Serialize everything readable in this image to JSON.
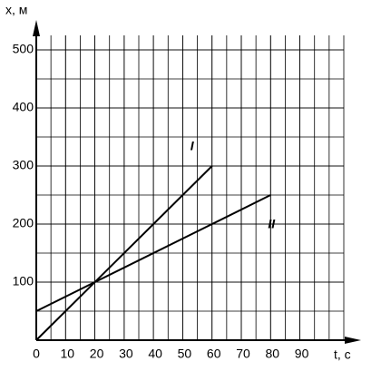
{
  "chart_data": {
    "type": "line",
    "xlabel": "t, c",
    "ylabel": "x, м",
    "series": [
      {
        "name": "I",
        "color": "#000000",
        "x": [
          0,
          60
        ],
        "values": [
          0,
          300
        ]
      },
      {
        "name": "II",
        "color": "#000000",
        "x": [
          0,
          80
        ],
        "values": [
          50,
          250
        ]
      }
    ],
    "xlim": [
      0,
      105
    ],
    "ylim": [
      0,
      525
    ],
    "xticks": [
      0,
      10,
      20,
      30,
      40,
      50,
      60,
      70,
      80,
      90
    ],
    "yticks": [
      100,
      200,
      300,
      400,
      500
    ],
    "grid": true
  }
}
